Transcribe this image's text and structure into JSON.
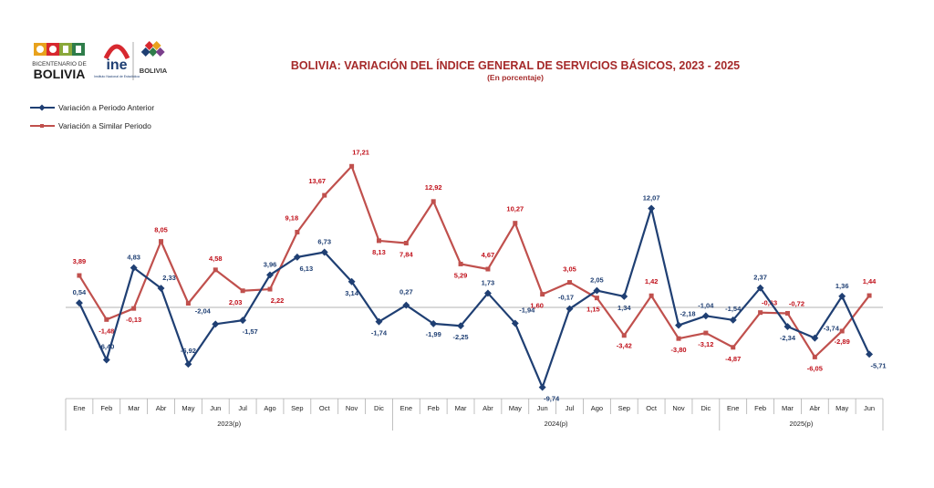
{
  "header": {
    "logo_bicentenario_line1": "BICENTENARIO DE",
    "logo_bicentenario_line2": "BOLIVIA",
    "logo_ine": "ine",
    "logo_ine_sub": "Instituto Nacional de Estadística",
    "logo_bolivia": "BOLIVIA"
  },
  "chart_data": {
    "type": "line",
    "title": "BOLIVIA: VARIACIÓN DEL ÍNDICE GENERAL DE SERVICIOS BÁSICOS, 2023 - 2025",
    "subtitle": "(En porcentaje)",
    "categories": [
      "Ene",
      "Feb",
      "Mar",
      "Abr",
      "May",
      "Jun",
      "Jul",
      "Ago",
      "Sep",
      "Oct",
      "Nov",
      "Dic",
      "Ene",
      "Feb",
      "Mar",
      "Abr",
      "May",
      "Jun",
      "Jul",
      "Ago",
      "Sep",
      "Oct",
      "Nov",
      "Dic",
      "Ene",
      "Feb",
      "Mar",
      "Abr",
      "May",
      "Jun"
    ],
    "year_groups": [
      {
        "label": "2023(p)",
        "start": 0,
        "end": 11
      },
      {
        "label": "2024(p)",
        "start": 12,
        "end": 23
      },
      {
        "label": "2025(p)",
        "start": 24,
        "end": 29
      }
    ],
    "series": [
      {
        "name": "Variación a Periodo Anterior",
        "color": "#1f3f73",
        "marker": "diamond",
        "values": [
          0.54,
          -6.4,
          4.83,
          2.33,
          -6.92,
          -2.04,
          -1.57,
          3.96,
          6.13,
          6.73,
          3.14,
          -1.74,
          0.27,
          -1.99,
          -2.25,
          1.73,
          -1.94,
          -9.74,
          -0.17,
          2.05,
          1.34,
          12.07,
          -2.18,
          -1.04,
          -1.54,
          2.37,
          -2.34,
          -3.74,
          1.36,
          -5.71
        ],
        "labels": [
          "0,54",
          "-6,40",
          "4,83",
          "2,33",
          "-6,92",
          "-2,04",
          "-1,57",
          "3,96",
          "6,13",
          "6,73",
          "3,14",
          "-1,74",
          "0,27",
          "-1,99",
          "-2,25",
          "1,73",
          "-1,94",
          "-9,74",
          "-0,17",
          "2,05",
          "1,34",
          "12,07",
          "-2,18",
          "-1,04",
          "-1,54",
          "2,37",
          "-2,34",
          "-3,74",
          "1,36",
          "-5,71"
        ]
      },
      {
        "name": "Variación a Similar Periodo",
        "color": "#c0504d",
        "marker": "square",
        "values": [
          3.89,
          -1.48,
          -0.13,
          8.05,
          0.5,
          4.58,
          2.03,
          2.22,
          9.18,
          13.67,
          17.21,
          8.13,
          7.84,
          12.92,
          5.29,
          4.67,
          10.27,
          1.6,
          3.05,
          1.15,
          -3.42,
          1.42,
          -3.8,
          -3.12,
          -4.87,
          -0.63,
          -0.72,
          -6.05,
          -2.89,
          1.44
        ],
        "labels": [
          "3,89",
          "-1,48",
          "-0,13",
          "8,05",
          "",
          "4,58",
          "2,03",
          "2,22",
          "9,18",
          "13,67",
          "17,21",
          "8,13",
          "7,84",
          "12,92",
          "5,29",
          "4,67",
          "10,27",
          "1,60",
          "3,05",
          "1,15",
          "-3,42",
          "1,42",
          "-3,80",
          "-3,12",
          "-4,87",
          "-0,63",
          "-0,72",
          "-6,05",
          "-2,89",
          "1,44"
        ]
      }
    ],
    "ylim": [
      -10,
      18
    ],
    "grid": false,
    "legend_placement": "top-left"
  }
}
